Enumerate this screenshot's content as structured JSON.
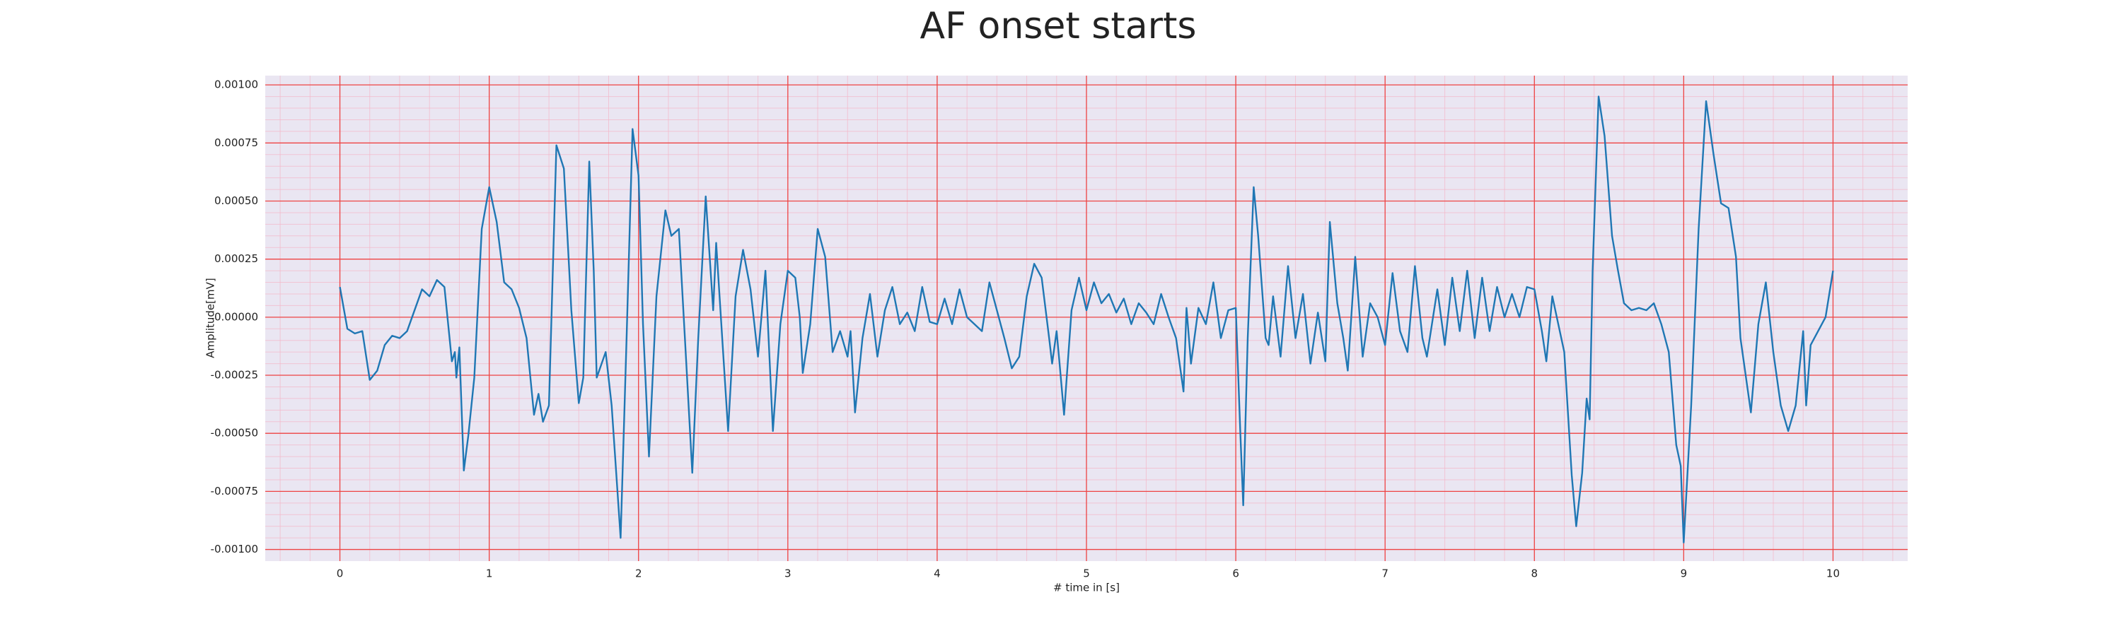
{
  "chart_data": {
    "type": "line",
    "title": "AF onset starts",
    "xlabel": "# time in [s]",
    "ylabel": "Amplitude[mV]",
    "xlim": [
      -0.5,
      10.5
    ],
    "xticks": [
      0,
      1,
      2,
      3,
      4,
      5,
      6,
      7,
      8,
      9,
      10
    ],
    "ylim": [
      -0.00105,
      0.00104
    ],
    "yticks": [
      {
        "value": 0.001,
        "label": "0.00100"
      },
      {
        "value": 0.00075,
        "label": "0.00075"
      },
      {
        "value": 0.0005,
        "label": "0.00050"
      },
      {
        "value": 0.00025,
        "label": "0.00025"
      },
      {
        "value": 0,
        "label": "0.00000"
      },
      {
        "value": -0.00025,
        "label": "-0.00025"
      },
      {
        "value": -0.0005,
        "label": "-0.00050"
      },
      {
        "value": -0.00075,
        "label": "-0.00075"
      },
      {
        "value": -0.001,
        "label": "-0.00100"
      }
    ],
    "grid": true,
    "x": [
      0,
      0.05,
      0.1,
      0.15,
      0.2,
      0.25,
      0.3,
      0.35,
      0.4,
      0.45,
      0.55,
      0.6,
      0.65,
      0.7,
      0.75,
      0.77,
      0.78,
      0.8,
      0.83,
      0.86,
      0.9,
      0.95,
      1.0,
      1.05,
      1.1,
      1.15,
      1.2,
      1.25,
      1.3,
      1.33,
      1.36,
      1.4,
      1.45,
      1.5,
      1.55,
      1.6,
      1.63,
      1.67,
      1.7,
      1.72,
      1.78,
      1.82,
      1.88,
      1.92,
      1.96,
      2.0,
      2.03,
      2.07,
      2.12,
      2.18,
      2.22,
      2.27,
      2.32,
      2.36,
      2.4,
      2.45,
      2.5,
      2.52,
      2.6,
      2.65,
      2.7,
      2.75,
      2.8,
      2.85,
      2.9,
      2.95,
      3.0,
      3.05,
      3.08,
      3.1,
      3.15,
      3.2,
      3.25,
      3.3,
      3.35,
      3.4,
      3.42,
      3.45,
      3.5,
      3.55,
      3.6,
      3.65,
      3.7,
      3.75,
      3.8,
      3.85,
      3.9,
      3.95,
      4.0,
      4.05,
      4.1,
      4.15,
      4.2,
      4.3,
      4.35,
      4.45,
      4.5,
      4.55,
      4.6,
      4.65,
      4.7,
      4.75,
      4.77,
      4.8,
      4.82,
      4.85,
      4.9,
      4.95,
      5.0,
      5.05,
      5.1,
      5.15,
      5.2,
      5.25,
      5.3,
      5.35,
      5.4,
      5.45,
      5.5,
      5.55,
      5.6,
      5.65,
      5.67,
      5.7,
      5.75,
      5.8,
      5.85,
      5.9,
      5.95,
      6.0,
      6.03,
      6.05,
      6.08,
      6.12,
      6.15,
      6.2,
      6.22,
      6.25,
      6.3,
      6.35,
      6.4,
      6.45,
      6.5,
      6.55,
      6.6,
      6.63,
      6.68,
      6.72,
      6.75,
      6.8,
      6.85,
      6.9,
      6.95,
      7.0,
      7.05,
      7.1,
      7.15,
      7.2,
      7.25,
      7.28,
      7.35,
      7.4,
      7.45,
      7.5,
      7.55,
      7.6,
      7.65,
      7.7,
      7.75,
      7.8,
      7.85,
      7.9,
      7.95,
      8.0,
      8.05,
      8.08,
      8.12,
      8.15,
      8.2,
      8.25,
      8.28,
      8.32,
      8.35,
      8.37,
      8.39,
      8.43,
      8.47,
      8.52,
      8.56,
      8.6,
      8.65,
      8.7,
      8.75,
      8.8,
      8.85,
      8.9,
      8.95,
      8.98,
      9.0,
      9.05,
      9.1,
      9.15,
      9.2,
      9.25,
      9.3,
      9.35,
      9.38,
      9.45,
      9.5,
      9.55,
      9.6,
      9.65,
      9.7,
      9.75,
      9.8,
      9.82,
      9.85,
      9.9,
      9.95,
      10.0
    ],
    "series": [
      {
        "color": "#1f77b4",
        "values": [
          0.00013,
          -5e-05,
          -7e-05,
          -6e-05,
          -0.00027,
          -0.00023,
          -0.00012,
          -8e-05,
          -9e-05,
          -6e-05,
          0.00012,
          9e-05,
          0.00016,
          0.00013,
          -0.00019,
          -0.00015,
          -0.00026,
          -0.00013,
          -0.00066,
          -0.00051,
          -0.00026,
          0.00038,
          0.00056,
          0.00041,
          0.00015,
          0.00012,
          4e-05,
          -9e-05,
          -0.00042,
          -0.00033,
          -0.00045,
          -0.00038,
          0.00074,
          0.00064,
          3e-05,
          -0.00037,
          -0.00026,
          0.00067,
          0.0002,
          -0.00026,
          -0.00015,
          -0.00038,
          -0.00095,
          -9e-05,
          0.00081,
          0.00061,
          -3e-05,
          -0.0006,
          9e-05,
          0.00046,
          0.00035,
          0.00038,
          -0.0002,
          -0.00067,
          -9e-05,
          0.00052,
          3e-05,
          0.00032,
          -0.00049,
          9e-05,
          0.00029,
          0.00012,
          -0.00017,
          0.0002,
          -0.00049,
          -3e-05,
          0.0002,
          0.00017,
          0,
          -0.00024,
          -3e-05,
          0.00038,
          0.00026,
          -0.00015,
          -6e-05,
          -0.00017,
          -6e-05,
          -0.00041,
          -9e-05,
          0.0001,
          -0.00017,
          3e-05,
          0.00013,
          -3e-05,
          2e-05,
          -6e-05,
          0.00013,
          -2e-05,
          -3e-05,
          8e-05,
          -3e-05,
          0.00012,
          0,
          -6e-05,
          0.00015,
          -9e-05,
          -0.00022,
          -0.00017,
          9e-05,
          0.00023,
          0.00017,
          -9e-05,
          -0.0002,
          -6e-05,
          -0.0002,
          -0.00042,
          3e-05,
          0.00017,
          3e-05,
          0.00015,
          6e-05,
          0.0001,
          2e-05,
          8e-05,
          -3e-05,
          6e-05,
          2e-05,
          -3e-05,
          0.0001,
          0,
          -9e-05,
          -0.00032,
          4e-05,
          -0.0002,
          4e-05,
          -3e-05,
          0.00015,
          -9e-05,
          3e-05,
          4e-05,
          -0.00049,
          -0.00081,
          -9e-05,
          0.00056,
          0.00035,
          -9e-05,
          -0.00012,
          9e-05,
          -0.00017,
          0.00022,
          -9e-05,
          0.0001,
          -0.0002,
          2e-05,
          -0.00019,
          0.00041,
          6e-05,
          -9e-05,
          -0.00023,
          0.00026,
          -0.00017,
          6e-05,
          0,
          -0.00012,
          0.00019,
          -6e-05,
          -0.00015,
          0.00022,
          -9e-05,
          -0.00017,
          0.00012,
          -0.00012,
          0.00017,
          -6e-05,
          0.0002,
          -9e-05,
          0.00017,
          -6e-05,
          0.00013,
          0,
          0.0001,
          0,
          0.00013,
          0.00012,
          -6e-05,
          -0.00019,
          9e-05,
          0,
          -0.00015,
          -0.00068,
          -0.0009,
          -0.00067,
          -0.00035,
          -0.00044,
          0.0002,
          0.00095,
          0.00078,
          0.00035,
          0.0002,
          6e-05,
          3e-05,
          4e-05,
          3e-05,
          6e-05,
          -3e-05,
          -0.00015,
          -0.00055,
          -0.00064,
          -0.00097,
          -0.00038,
          0.00038,
          0.00093,
          0.0007,
          0.00049,
          0.00047,
          0.00026,
          -9e-05,
          -0.00041,
          -3e-05,
          0.00015,
          -0.00015,
          -0.00038,
          -0.00049,
          -0.00038,
          -6e-05,
          -0.00038,
          -0.00012,
          -6e-05,
          0,
          0.0002
        ]
      }
    ]
  }
}
